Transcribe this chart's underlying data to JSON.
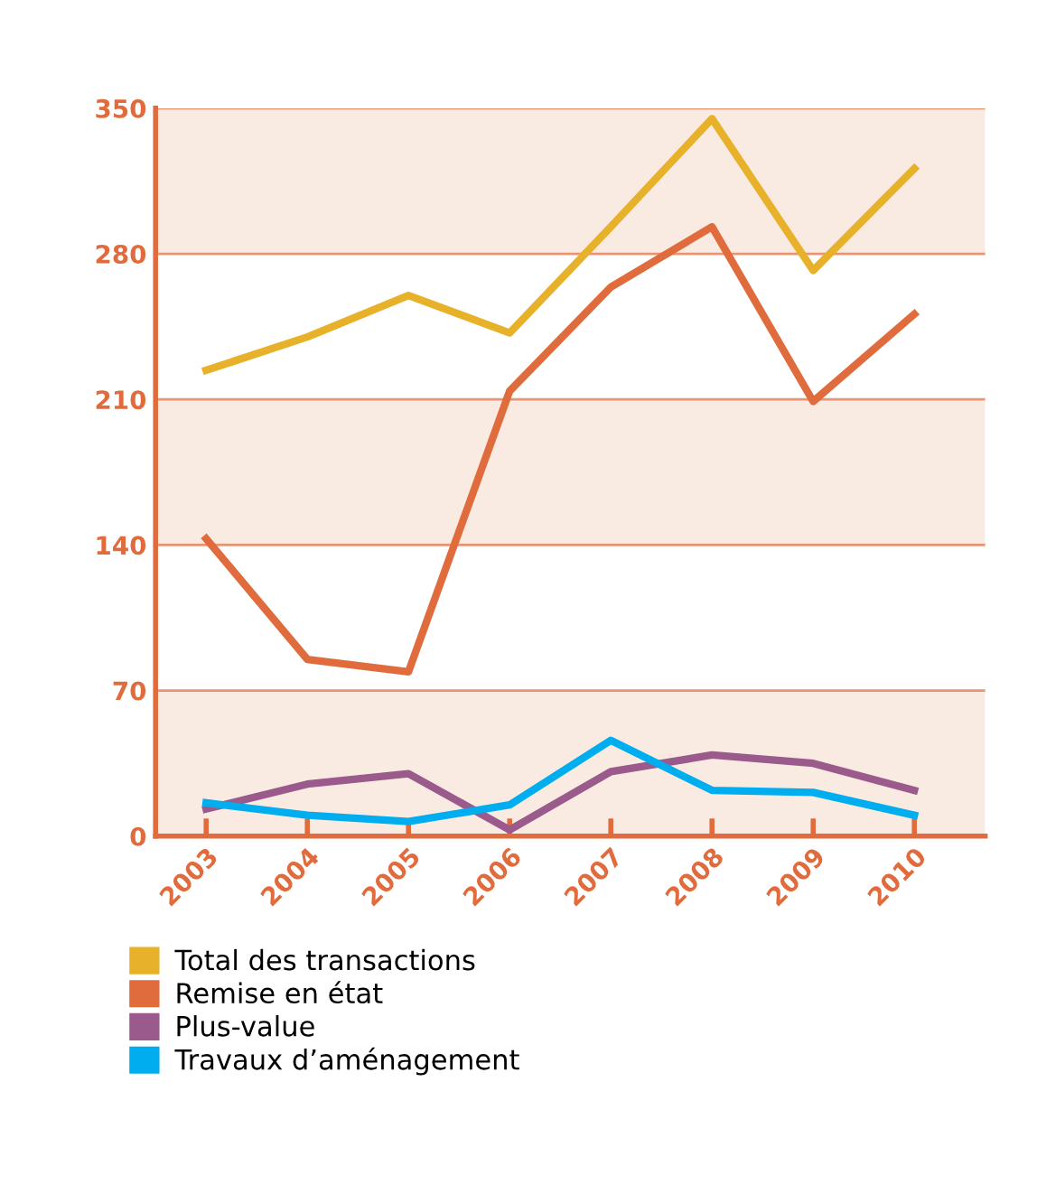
{
  "chart_data": {
    "type": "line",
    "categories": [
      "2003",
      "2004",
      "2005",
      "2006",
      "2007",
      "2008",
      "2009",
      "2010"
    ],
    "series": [
      {
        "name": "Total des transactions",
        "color": "#e8b12a",
        "values": [
          224,
          240,
          260,
          242,
          293,
          345,
          272,
          321
        ]
      },
      {
        "name": "Remise en état",
        "color": "#e06c3e",
        "values": [
          143,
          85,
          79,
          214,
          264,
          293,
          209,
          251
        ]
      },
      {
        "name": "Plus-value",
        "color": "#9b5a8c",
        "values": [
          13,
          25,
          30,
          3,
          31,
          39,
          35,
          22
        ]
      },
      {
        "name": "Travaux d’aménagement",
        "color": "#00aeef",
        "values": [
          16,
          10,
          7,
          15,
          46,
          22,
          21,
          10
        ]
      }
    ],
    "ylim": [
      0,
      350
    ],
    "yticks": [
      0,
      70,
      140,
      210,
      280,
      350
    ],
    "bands": [
      {
        "axis": "y",
        "from": 0,
        "to": 70,
        "color": "#f9ebe1"
      },
      {
        "axis": "y",
        "from": 140,
        "to": 210,
        "color": "#f9ebe1"
      },
      {
        "axis": "y",
        "from": 280,
        "to": 350,
        "color": "#f9ebe1"
      }
    ],
    "grid": "y",
    "legend": "bottom",
    "marker": "none",
    "line_style": "solid"
  }
}
